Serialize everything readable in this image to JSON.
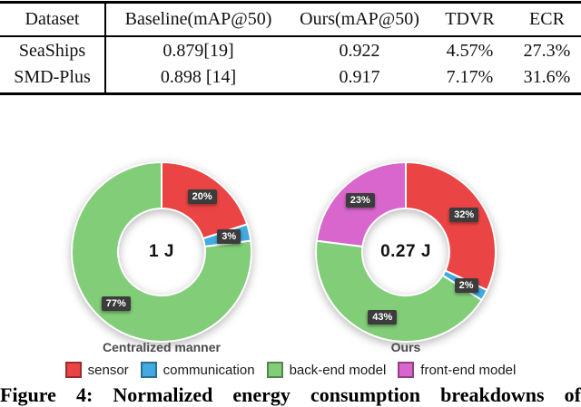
{
  "table": {
    "columns": [
      "Dataset",
      "Baseline(mAP@50)",
      "Ours(mAP@50)",
      "TDVR",
      "ECR"
    ],
    "rows": [
      [
        "SeaShips",
        "0.879[19]",
        "0.922",
        "4.57%",
        "27.3%"
      ],
      [
        "SMD-Plus",
        "0.898 [14]",
        "0.917",
        "7.17%",
        "31.6%"
      ]
    ]
  },
  "chart_data": [
    {
      "type": "pie",
      "subtype": "donut",
      "title": "Centralized manner",
      "center_label": "1 J",
      "categories": [
        "sensor",
        "communication",
        "back-end model"
      ],
      "values": [
        20,
        3,
        77
      ],
      "labels": [
        "20%",
        "3%",
        "77%"
      ],
      "colors": [
        "#eb4444",
        "#42aae0",
        "#82cd78"
      ],
      "start_angle_deg": 0,
      "direction": "clockwise"
    },
    {
      "type": "pie",
      "subtype": "donut",
      "title": "Ours",
      "center_label": "0.27 J",
      "categories": [
        "sensor",
        "communication",
        "back-end model",
        "front-end model"
      ],
      "values": [
        32,
        2,
        43,
        23
      ],
      "labels": [
        "32%",
        "2%",
        "43%",
        "23%"
      ],
      "colors": [
        "#eb4444",
        "#42aae0",
        "#82cd78",
        "#d966cc"
      ],
      "start_angle_deg": 0,
      "direction": "clockwise"
    }
  ],
  "legend": [
    {
      "label": "sensor",
      "color": "#eb4444"
    },
    {
      "label": "communication",
      "color": "#42aae0"
    },
    {
      "label": "back-end model",
      "color": "#82cd78"
    },
    {
      "label": "front-end model",
      "color": "#d966cc"
    }
  ],
  "caption": "Figure 4: Normalized energy consumption breakdowns of",
  "badge_color": "#3c3c3c"
}
